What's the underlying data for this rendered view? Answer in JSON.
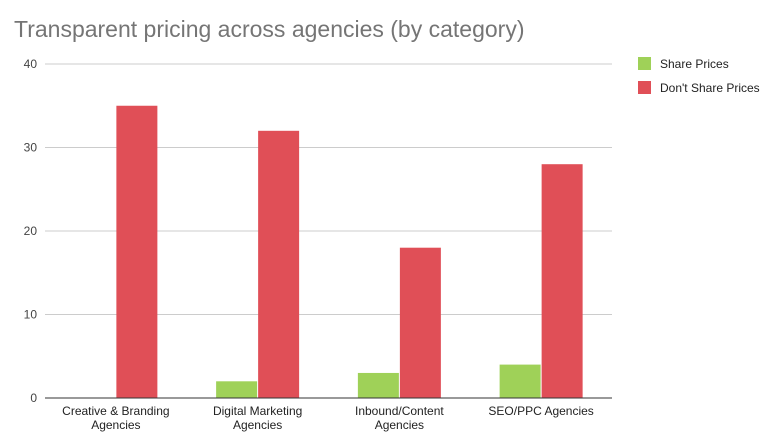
{
  "chart_data": {
    "type": "bar",
    "title": "Transparent pricing across agencies (by category)",
    "categories": [
      [
        "Creative & Branding",
        "Agencies"
      ],
      [
        "Digital Marketing",
        "Agencies"
      ],
      [
        "Inbound/Content",
        "Agencies"
      ],
      [
        "SEO/PPC Agencies"
      ]
    ],
    "series": [
      {
        "name": "Share Prices",
        "values": [
          0,
          2,
          3,
          4
        ],
        "color": "#9fd158"
      },
      {
        "name": "Don't Share Prices",
        "values": [
          35,
          32,
          18,
          28
        ],
        "color": "#e04f57"
      }
    ],
    "ylim": [
      0,
      40
    ],
    "yticks": [
      0,
      10,
      20,
      30,
      40
    ],
    "grid": true,
    "legend": "right"
  }
}
